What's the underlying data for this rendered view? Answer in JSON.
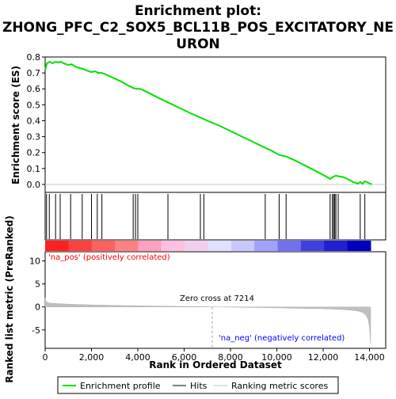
{
  "chart_data": {
    "type": "line",
    "title": "Enrichment plot: ZHONG_PFC_C2_SOX5_BCL11B_POS_EXCITATORY_NEURON",
    "title_lines": [
      "Enrichment plot:",
      "ZHONG_PFC_C2_SOX5_BCL11B_POS_EXCITATORY_NE",
      "URON"
    ],
    "es_panel": {
      "ylabel": "Enrichment score (ES)",
      "ylim": [
        -0.05,
        0.8
      ],
      "yticks": [
        0.0,
        0.1,
        0.2,
        0.3,
        0.4,
        0.5,
        0.6,
        0.7,
        0.8
      ],
      "ytick_labels": [
        "0.0",
        "0.1",
        "0.2",
        "0.3",
        "0.4",
        "0.5",
        "0.6",
        "0.7",
        "0.8"
      ],
      "series": [
        {
          "name": "Enrichment profile",
          "color": "#00e000",
          "x": [
            0,
            80,
            200,
            320,
            450,
            560,
            680,
            800,
            1000,
            1150,
            1300,
            1500,
            1650,
            1800,
            2000,
            2150,
            2300,
            2450,
            2700,
            3000,
            3300,
            3600,
            3800,
            3950,
            4100,
            4400,
            4800,
            5300,
            5800,
            6300,
            6700,
            7000,
            7500,
            8000,
            8500,
            9000,
            9500,
            9800,
            10100,
            10400,
            10800,
            11200,
            11600,
            12000,
            12300,
            12400,
            12550,
            12700,
            12900,
            13100,
            13300,
            13500,
            13600,
            13700,
            13800,
            13950,
            14100
          ],
          "y": [
            0.72,
            0.76,
            0.77,
            0.76,
            0.77,
            0.765,
            0.77,
            0.76,
            0.75,
            0.755,
            0.74,
            0.73,
            0.725,
            0.715,
            0.705,
            0.71,
            0.7,
            0.7,
            0.685,
            0.665,
            0.645,
            0.62,
            0.605,
            0.6,
            0.6,
            0.58,
            0.55,
            0.515,
            0.48,
            0.445,
            0.42,
            0.4,
            0.37,
            0.335,
            0.3,
            0.265,
            0.23,
            0.21,
            0.185,
            0.175,
            0.15,
            0.12,
            0.09,
            0.06,
            0.035,
            0.045,
            0.055,
            0.05,
            0.045,
            0.03,
            0.015,
            0.005,
            0.015,
            0.005,
            0.02,
            0.01,
            0.0
          ]
        }
      ]
    },
    "hits": [
      60,
      180,
      450,
      650,
      1100,
      1600,
      2000,
      2250,
      2450,
      3800,
      3900,
      4000,
      5300,
      6700,
      6850,
      9500,
      10100,
      10400,
      12300,
      12400,
      12450,
      12500,
      12550,
      12650,
      13600,
      13800
    ],
    "rank_bar_colors": [
      "#ff2020",
      "#ff4040",
      "#ff6060",
      "#ff8080",
      "#ffa0c0",
      "#ffc0e0",
      "#f0d0f0",
      "#e0e0ff",
      "#c8c8ff",
      "#a0a0ff",
      "#7070f0",
      "#4040e0",
      "#2020d0",
      "#0000c0"
    ],
    "metric_panel": {
      "ylabel": "Ranked list metric (PreRanked)",
      "ylim": [
        -9,
        12
      ],
      "yticks": [
        -5,
        0,
        5,
        10
      ],
      "ytick_labels": [
        "-5",
        "0",
        "5",
        "10"
      ],
      "pos_label": "'na_pos' (positively correlated)",
      "neg_label": "'na_neg' (negatively correlated)",
      "zero_cross_label": "Zero cross at 7214",
      "zero_cross": 7214,
      "metric_profile": {
        "x": [
          0,
          20,
          60,
          150,
          300,
          600,
          1000,
          2000,
          3000,
          4000,
          5000,
          6000,
          7000,
          7214,
          8000,
          9000,
          10000,
          11000,
          12000,
          12800,
          13200,
          13500,
          13700,
          13850,
          13950,
          14000,
          14050
        ],
        "y": [
          2.0,
          1.4,
          1.1,
          0.9,
          0.8,
          0.7,
          0.6,
          0.45,
          0.35,
          0.25,
          0.18,
          0.1,
          0.03,
          0.0,
          -0.05,
          -0.12,
          -0.2,
          -0.3,
          -0.4,
          -0.55,
          -0.7,
          -0.9,
          -1.2,
          -1.8,
          -2.8,
          -4.5,
          -8.0
        ]
      }
    },
    "xaxis": {
      "xlabel": "Rank in Ordered Dataset",
      "xlim": [
        0,
        14700
      ],
      "xticks": [
        0,
        2000,
        4000,
        6000,
        8000,
        10000,
        12000,
        14000
      ],
      "xtick_labels": [
        "0",
        "2,000",
        "4,000",
        "6,000",
        "8,000",
        "10,000",
        "12,000",
        "14,000"
      ]
    },
    "legend": {
      "placement": "bottom",
      "entries": [
        {
          "label": "Enrichment profile",
          "color": "#00e000"
        },
        {
          "label": "Hits",
          "color": "#000000"
        },
        {
          "label": "Ranking metric scores",
          "color": "#c0c0c0"
        }
      ]
    }
  }
}
